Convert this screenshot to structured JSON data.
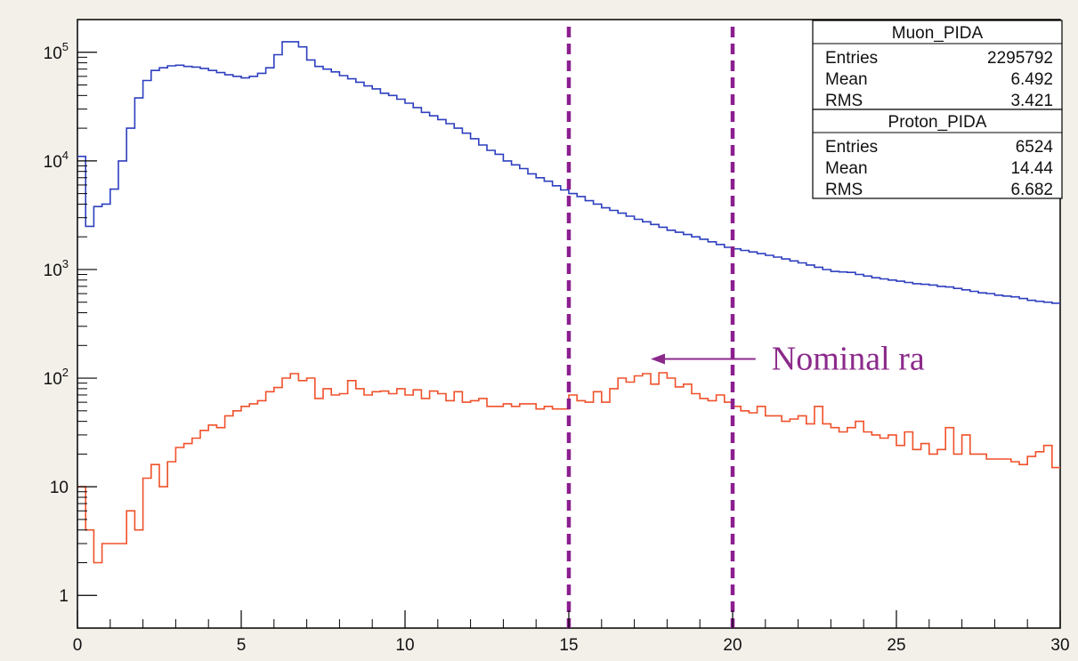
{
  "chart_data": {
    "type": "histogram",
    "title": "",
    "xlabel": "",
    "ylabel": "",
    "xlim": [
      0,
      30
    ],
    "ylim": [
      0.5,
      200000
    ],
    "yscale": "log",
    "grid": false,
    "x_ticks": [
      "0",
      "5",
      "10",
      "15",
      "20",
      "25",
      "30"
    ],
    "y_ticks": [
      {
        "value": 1,
        "base": "1",
        "exp": ""
      },
      {
        "value": 10,
        "base": "10",
        "exp": ""
      },
      {
        "value": 100,
        "base": "10",
        "exp": "2"
      },
      {
        "value": 1000,
        "base": "10",
        "exp": "3"
      },
      {
        "value": 10000,
        "base": "10",
        "exp": "4"
      },
      {
        "value": 100000,
        "base": "10",
        "exp": "5"
      }
    ],
    "bin_width": 0.25,
    "series": [
      {
        "name": "Muon_PIDA",
        "color": "#2d3fbf",
        "values": [
          11000,
          2500,
          3800,
          4000,
          5500,
          10000,
          20000,
          38000,
          55000,
          68000,
          72000,
          75000,
          76000,
          74000,
          73000,
          71000,
          68000,
          65000,
          62000,
          60000,
          58000,
          60000,
          64000,
          72000,
          95000,
          125000,
          125000,
          112000,
          85000,
          74000,
          70000,
          66000,
          61000,
          57000,
          53000,
          49000,
          46000,
          42000,
          40000,
          37000,
          34000,
          31000,
          28000,
          26000,
          24000,
          22000,
          20000,
          18000,
          16000,
          14000,
          12500,
          11500,
          10000,
          9200,
          8500,
          7600,
          7000,
          6500,
          5900,
          5400,
          5000,
          4700,
          4300,
          4000,
          3700,
          3500,
          3300,
          3100,
          2900,
          2750,
          2600,
          2450,
          2300,
          2200,
          2100,
          2000,
          1900,
          1800,
          1700,
          1600,
          1550,
          1500,
          1450,
          1400,
          1350,
          1300,
          1250,
          1200,
          1150,
          1100,
          1050,
          1000,
          960,
          950,
          940,
          900,
          870,
          840,
          820,
          800,
          780,
          760,
          740,
          730,
          720,
          700,
          690,
          670,
          650,
          630,
          610,
          600,
          580,
          570,
          560,
          540,
          520,
          510,
          500,
          490
        ]
      },
      {
        "name": "Proton_PIDA",
        "color": "#f0502a",
        "values": [
          10,
          4,
          2,
          3,
          3,
          3,
          6,
          4,
          12,
          16,
          10,
          17,
          23,
          25,
          28,
          33,
          37,
          35,
          45,
          50,
          55,
          58,
          62,
          75,
          82,
          100,
          110,
          95,
          100,
          65,
          80,
          70,
          72,
          95,
          80,
          70,
          75,
          76,
          72,
          80,
          70,
          78,
          65,
          76,
          72,
          62,
          75,
          60,
          62,
          65,
          55,
          55,
          58,
          55,
          58,
          58,
          52,
          55,
          52,
          52,
          70,
          62,
          60,
          75,
          60,
          80,
          100,
          92,
          105,
          110,
          88,
          112,
          100,
          83,
          88,
          72,
          65,
          62,
          70,
          60,
          55,
          50,
          48,
          55,
          45,
          45,
          40,
          42,
          45,
          38,
          55,
          38,
          35,
          32,
          35,
          40,
          32,
          30,
          28,
          30,
          24,
          32,
          22,
          25,
          20,
          22,
          35,
          20,
          30,
          20,
          20,
          18,
          18,
          18,
          17,
          16,
          19,
          21,
          24,
          15
        ]
      }
    ],
    "stat_boxes": [
      {
        "title": "Muon_PIDA",
        "rows": [
          {
            "label": "Entries",
            "value": "2295792"
          },
          {
            "label": "Mean",
            "value": "6.492"
          },
          {
            "label": "RMS",
            "value": "3.421"
          }
        ]
      },
      {
        "title": "Proton_PIDA",
        "rows": [
          {
            "label": "Entries",
            "value": "6524"
          },
          {
            "label": "Mean",
            "value": "14.44"
          },
          {
            "label": "RMS",
            "value": "6.682"
          }
        ]
      }
    ],
    "vertical_lines": [
      {
        "x": 15,
        "color": "#8b1f8f",
        "style": "dashed"
      },
      {
        "x": 20,
        "color": "#8b1f8f",
        "style": "dashed"
      }
    ],
    "annotation": {
      "text": "Nominal ra",
      "color": "#8b2a8b",
      "arrow_from_x": 20.7,
      "arrow_to_x": 17.5,
      "y": 150
    }
  }
}
